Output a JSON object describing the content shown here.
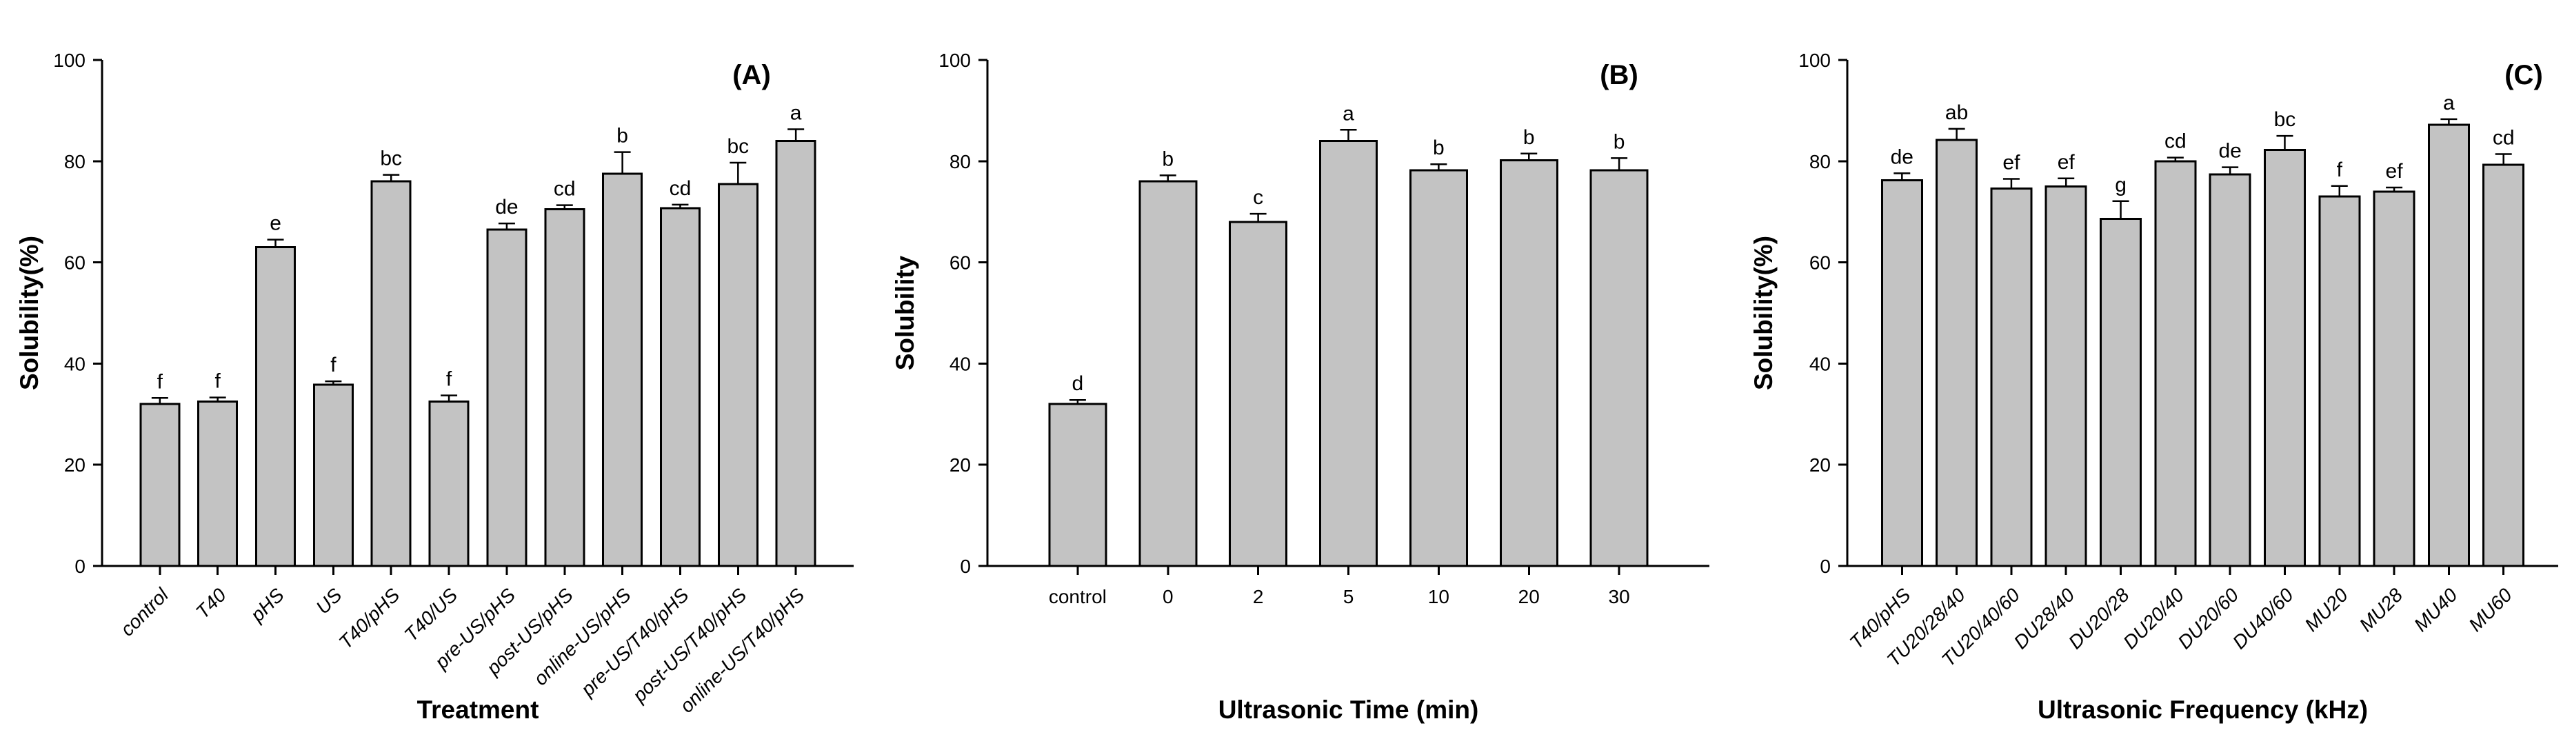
{
  "figure": {
    "background_color": "#ffffff",
    "bar_fill_color": "#c3c3c3",
    "axis_color": "#000000"
  },
  "chart_data": [
    {
      "type": "bar",
      "panel_label": "(A)",
      "title": "",
      "xlabel": "Treatment",
      "ylabel": "Solubility(%)",
      "ylim": [
        0,
        100
      ],
      "yticks": [
        0,
        20,
        40,
        60,
        80,
        100
      ],
      "grid": false,
      "legend_position": "none",
      "x_tick_style": "rotated-italic",
      "categories": [
        "control",
        "T40",
        "pHS",
        "US",
        "T40/pHS",
        "T40/US",
        "pre-US/pHS",
        "post-US/pHS",
        "online-US/pHS",
        "pre-US/T40/pHS",
        "post-US/T40/pHS",
        "online-US/T40/pHS"
      ],
      "values": [
        32,
        32.5,
        63,
        35.8,
        76,
        32.5,
        66.5,
        70.5,
        77.5,
        70.7,
        75.5,
        84
      ],
      "errors": [
        1.2,
        0.8,
        1.5,
        0.7,
        1.3,
        1.2,
        1.2,
        0.8,
        4.3,
        0.7,
        4.2,
        2.3
      ],
      "sig_letters": [
        "f",
        "f",
        "e",
        "f",
        "bc",
        "f",
        "de",
        "cd",
        "b",
        "cd",
        "bc",
        "a"
      ]
    },
    {
      "type": "bar",
      "panel_label": "(B)",
      "title": "",
      "xlabel": "Ultrasonic Time (min)",
      "ylabel": "Solubility",
      "ylim": [
        0,
        100
      ],
      "yticks": [
        0,
        20,
        40,
        60,
        80,
        100
      ],
      "grid": false,
      "legend_position": "none",
      "x_tick_style": "horizontal",
      "categories": [
        "control",
        "0",
        "2",
        "5",
        "10",
        "20",
        "30"
      ],
      "values": [
        32,
        76,
        68,
        84,
        78.2,
        80.2,
        78.2
      ],
      "errors": [
        0.8,
        1.2,
        1.6,
        2.2,
        1.2,
        1.3,
        2.4
      ],
      "sig_letters": [
        "d",
        "b",
        "c",
        "a",
        "b",
        "b",
        "b"
      ]
    },
    {
      "type": "bar",
      "panel_label": "(C)",
      "title": "",
      "xlabel": "Ultrasonic Frequency (kHz)",
      "ylabel": "Solubility(%)",
      "ylim": [
        0,
        100
      ],
      "yticks": [
        0,
        20,
        40,
        60,
        80,
        100
      ],
      "grid": false,
      "legend_position": "none",
      "x_tick_style": "rotated-italic",
      "categories": [
        "T40/pHS",
        "TU20/28/40",
        "TU20/40/60",
        "DU28/40",
        "DU20/28",
        "DU20/40",
        "DU20/60",
        "DU40/60",
        "MU20",
        "MU28",
        "MU40",
        "MU60"
      ],
      "values": [
        76.2,
        84.2,
        74.6,
        75,
        68.6,
        80,
        77.4,
        82.2,
        73,
        74,
        87.2,
        79.3
      ],
      "errors": [
        1.4,
        2.2,
        1.9,
        1.6,
        3.5,
        0.7,
        1.4,
        2.8,
        2.1,
        0.8,
        1.1,
        2.1
      ],
      "sig_letters": [
        "de",
        "ab",
        "ef",
        "ef",
        "g",
        "cd",
        "de",
        "bc",
        "f",
        "ef",
        "a",
        "cd"
      ]
    }
  ]
}
